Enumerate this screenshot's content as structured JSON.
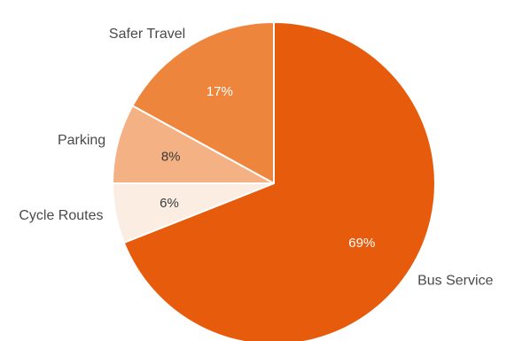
{
  "chart_data": {
    "type": "pie",
    "title": "",
    "start": "top",
    "direction": "clockwise",
    "slices": [
      {
        "label": "Bus Service",
        "value": 69,
        "value_label": "69%",
        "color": "#e65c0c",
        "value_text_color": "#ffffff"
      },
      {
        "label": "Cycle Routes",
        "value": 6,
        "value_label": "6%",
        "color": "#fcede3",
        "value_text_color": "#3a3a3a"
      },
      {
        "label": "Parking",
        "value": 8,
        "value_label": "8%",
        "color": "#f4b183",
        "value_text_color": "#3a3a3a"
      },
      {
        "label": "Safer Travel",
        "value": 17,
        "value_label": "17%",
        "color": "#ed853d",
        "value_text_color": "#ffffff"
      }
    ]
  }
}
